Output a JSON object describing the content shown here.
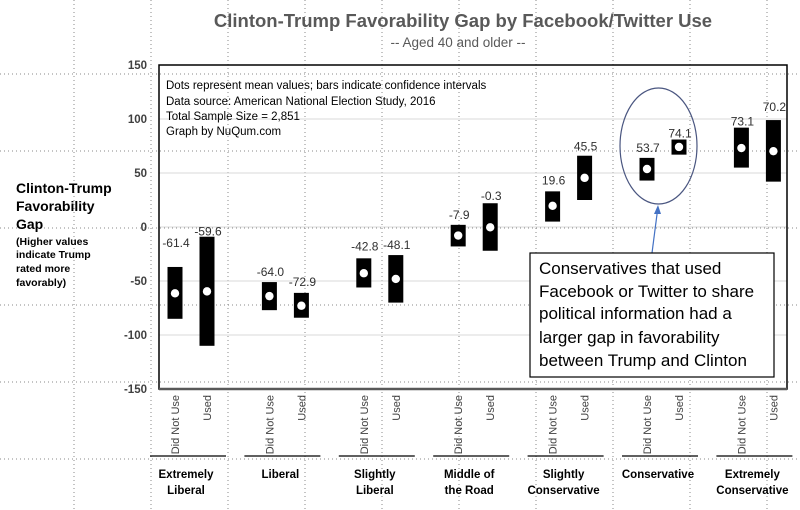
{
  "chart_data": {
    "type": "bar",
    "subtype": "floating confidence-interval bars with mean dots",
    "title": "Clinton-Trump Favorability Gap by Facebook/Twitter Use",
    "subtitle": "-- Aged 40 and older --",
    "ylabel_lines": [
      "Clinton-Trump",
      "Favorability",
      "Gap"
    ],
    "ylabel_note_lines": [
      "(Higher values",
      "indicate Trump",
      "rated more",
      "favorably)"
    ],
    "ylim": [
      -150,
      150
    ],
    "yticks": [
      "150",
      "100",
      "50",
      "0",
      "-50",
      "-100",
      "-150"
    ],
    "ytick_values": [
      150,
      100,
      50,
      0,
      -50,
      -100,
      -150
    ],
    "grid": true,
    "legend_position": "top-left (inside plot)",
    "notes": [
      "Dots represent mean values; bars indicate confidence intervals",
      "Data source: American National Election Study, 2016",
      "Total Sample Size = 2,851",
      "Graph by NuQum.com"
    ],
    "groups": [
      {
        "name": "Extremely Liberal",
        "label_lines": [
          "Extremely",
          "Liberal"
        ],
        "points": [
          {
            "label": "Did Not Use",
            "mean": -61.4,
            "mean_label": "-61.4",
            "ci_low": -85,
            "ci_high": -37
          },
          {
            "label": "Used",
            "mean": -59.6,
            "mean_label": "-59.6",
            "ci_low": -110,
            "ci_high": -9
          }
        ]
      },
      {
        "name": "Liberal",
        "label_lines": [
          "Liberal"
        ],
        "points": [
          {
            "label": "Did Not Use",
            "mean": -64.0,
            "mean_label": "-64.0",
            "ci_low": -77,
            "ci_high": -51
          },
          {
            "label": "Used",
            "mean": -72.9,
            "mean_label": "-72.9",
            "ci_low": -84,
            "ci_high": -61
          }
        ]
      },
      {
        "name": "Slightly Liberal",
        "label_lines": [
          "Slightly",
          "Liberal"
        ],
        "points": [
          {
            "label": "Did Not Use",
            "mean": -42.8,
            "mean_label": "-42.8",
            "ci_low": -56,
            "ci_high": -29
          },
          {
            "label": "Used",
            "mean": -48.1,
            "mean_label": "-48.1",
            "ci_low": -70,
            "ci_high": -26
          }
        ]
      },
      {
        "name": "Middle of the Road",
        "label_lines": [
          "Middle of",
          "the Road"
        ],
        "points": [
          {
            "label": "Did Not Use",
            "mean": -7.9,
            "mean_label": "-7.9",
            "ci_low": -18,
            "ci_high": 2
          },
          {
            "label": "Used",
            "mean": -0.3,
            "mean_label": "-0.3",
            "ci_low": -22,
            "ci_high": 22
          }
        ]
      },
      {
        "name": "Slightly Conservative",
        "label_lines": [
          "Slightly",
          "Conservative"
        ],
        "points": [
          {
            "label": "Did Not Use",
            "mean": 19.6,
            "mean_label": "19.6",
            "ci_low": 5,
            "ci_high": 33
          },
          {
            "label": "Used",
            "mean": 45.5,
            "mean_label": "45.5",
            "ci_low": 25,
            "ci_high": 66
          }
        ]
      },
      {
        "name": "Conservative",
        "label_lines": [
          "Conservative"
        ],
        "points": [
          {
            "label": "Did Not Use",
            "mean": 53.7,
            "mean_label": "53.7",
            "ci_low": 43,
            "ci_high": 64
          },
          {
            "label": "Used",
            "mean": 74.1,
            "mean_label": "74.1",
            "ci_low": 67,
            "ci_high": 81
          }
        ]
      },
      {
        "name": "Extremely Conservative",
        "label_lines": [
          "Extremely",
          "Conservative"
        ],
        "points": [
          {
            "label": "Did Not Use",
            "mean": 73.1,
            "mean_label": "73.1",
            "ci_low": 55,
            "ci_high": 92
          },
          {
            "label": "Used",
            "mean": 70.2,
            "mean_label": "70.2",
            "ci_low": 42,
            "ci_high": 99
          }
        ]
      }
    ],
    "annotation": {
      "highlight_group": "Conservative",
      "text_lines": [
        "Conservatives that used",
        "Facebook or Twitter to share",
        "political information had a",
        "larger gap in favorability",
        "between Trump and Clinton"
      ]
    }
  },
  "colors": {
    "bar": "#000000",
    "mean_dot": "#ffffff",
    "title": "#595959",
    "gridline": "#d9d9d9",
    "highlight_ellipse": "#4a5680",
    "arrow": "#4472c4",
    "frame": "#000000"
  }
}
